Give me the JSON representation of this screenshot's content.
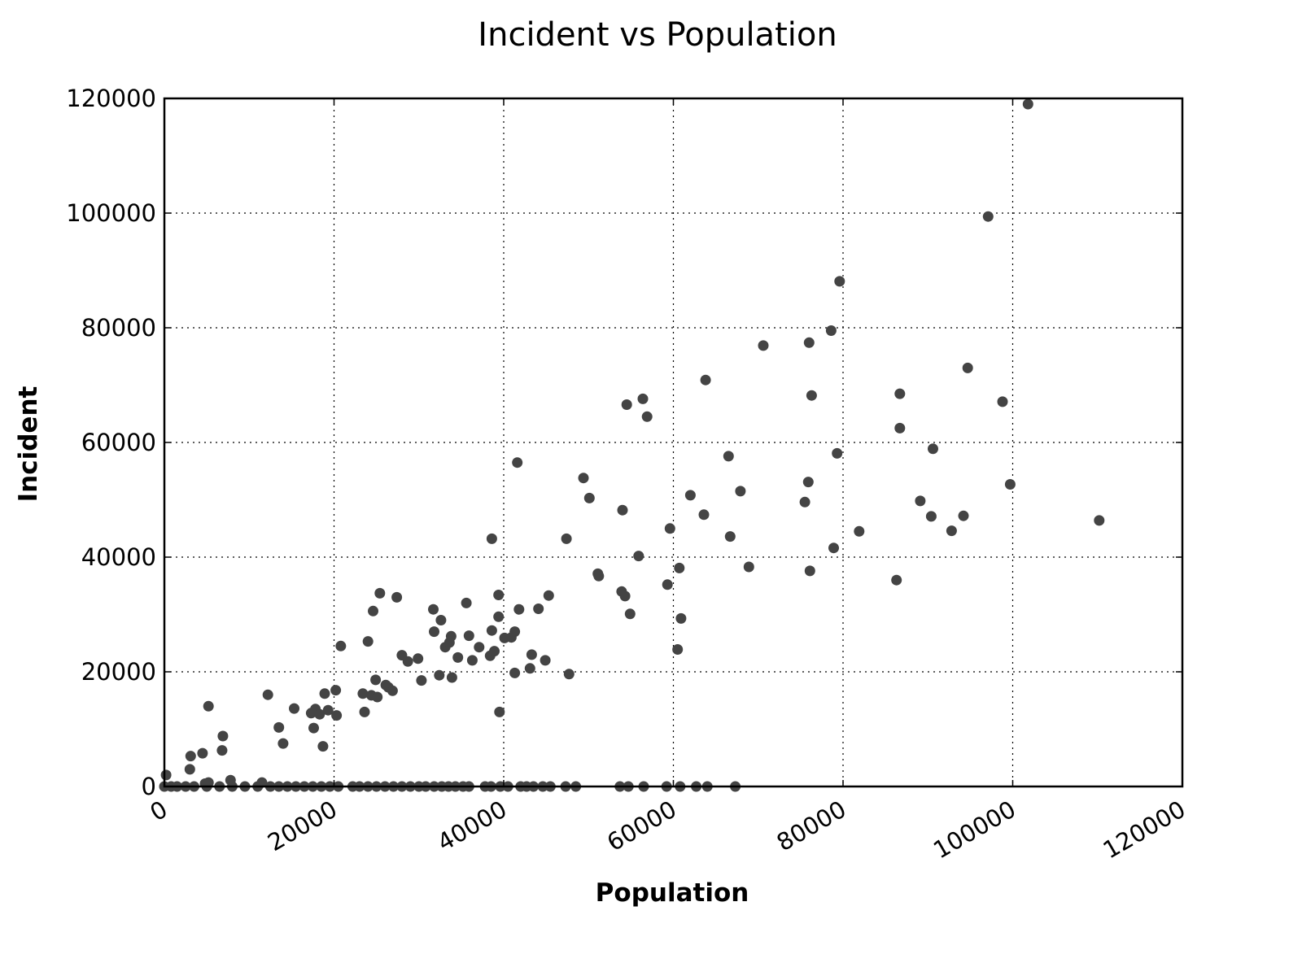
{
  "chart_data": {
    "type": "scatter",
    "title": "Incident vs Population",
    "xlabel": "Population",
    "ylabel": "Incident",
    "xlim": [
      0,
      120000
    ],
    "ylim": [
      0,
      120000
    ],
    "xticks": [
      "0",
      "20000",
      "40000",
      "60000",
      "80000",
      "100000",
      "120000"
    ],
    "yticks": [
      "0",
      "20000",
      "40000",
      "60000",
      "80000",
      "100000",
      "120000"
    ],
    "grid": true,
    "marker_color": "#444444",
    "points": [
      [
        200,
        2000
      ],
      [
        3000,
        3000
      ],
      [
        3100,
        5300
      ],
      [
        4500,
        5800
      ],
      [
        5200,
        14000
      ],
      [
        6800,
        6300
      ],
      [
        6900,
        8800
      ],
      [
        7800,
        1100
      ],
      [
        4800,
        500
      ],
      [
        5200,
        700
      ],
      [
        11500,
        700
      ],
      [
        12200,
        16000
      ],
      [
        13500,
        10300
      ],
      [
        14000,
        7500
      ],
      [
        15300,
        13600
      ],
      [
        17300,
        12800
      ],
      [
        17600,
        10200
      ],
      [
        17800,
        13500
      ],
      [
        18300,
        12600
      ],
      [
        18700,
        7000
      ],
      [
        18900,
        16200
      ],
      [
        19300,
        13300
      ],
      [
        20200,
        16800
      ],
      [
        20300,
        12400
      ],
      [
        20800,
        24500
      ],
      [
        23400,
        16200
      ],
      [
        23600,
        13000
      ],
      [
        24000,
        25300
      ],
      [
        24400,
        15900
      ],
      [
        24600,
        30600
      ],
      [
        24900,
        18600
      ],
      [
        25100,
        15600
      ],
      [
        25400,
        33700
      ],
      [
        26100,
        17700
      ],
      [
        26400,
        17300
      ],
      [
        26900,
        16700
      ],
      [
        27400,
        33000
      ],
      [
        28000,
        22900
      ],
      [
        28700,
        21800
      ],
      [
        29900,
        22300
      ],
      [
        30300,
        18500
      ],
      [
        31700,
        30900
      ],
      [
        31800,
        27000
      ],
      [
        32400,
        19400
      ],
      [
        32600,
        29000
      ],
      [
        33100,
        24300
      ],
      [
        33600,
        25100
      ],
      [
        33800,
        26200
      ],
      [
        33900,
        19000
      ],
      [
        34600,
        22500
      ],
      [
        35600,
        32000
      ],
      [
        35900,
        26300
      ],
      [
        36300,
        22000
      ],
      [
        37100,
        24300
      ],
      [
        38400,
        22800
      ],
      [
        38600,
        27200
      ],
      [
        38600,
        43200
      ],
      [
        38900,
        23600
      ],
      [
        39400,
        33400
      ],
      [
        39400,
        29600
      ],
      [
        39500,
        13000
      ],
      [
        40100,
        25900
      ],
      [
        40900,
        26000
      ],
      [
        41300,
        27000
      ],
      [
        41600,
        56500
      ],
      [
        41300,
        19800
      ],
      [
        41800,
        30900
      ],
      [
        43100,
        20600
      ],
      [
        43300,
        23000
      ],
      [
        44100,
        31000
      ],
      [
        44900,
        22000
      ],
      [
        45300,
        33300
      ],
      [
        47400,
        43200
      ],
      [
        47700,
        19600
      ],
      [
        49400,
        53800
      ],
      [
        50100,
        50300
      ],
      [
        51100,
        37100
      ],
      [
        51200,
        36700
      ],
      [
        53900,
        34000
      ],
      [
        54000,
        48200
      ],
      [
        54300,
        33200
      ],
      [
        54500,
        66600
      ],
      [
        54900,
        30100
      ],
      [
        55900,
        40200
      ],
      [
        56400,
        67600
      ],
      [
        56900,
        64500
      ],
      [
        59300,
        35200
      ],
      [
        59600,
        45000
      ],
      [
        60500,
        23900
      ],
      [
        60700,
        38100
      ],
      [
        60900,
        29300
      ],
      [
        62000,
        50800
      ],
      [
        63600,
        47400
      ],
      [
        63800,
        70900
      ],
      [
        66500,
        57600
      ],
      [
        66700,
        43600
      ],
      [
        67900,
        51500
      ],
      [
        68900,
        38300
      ],
      [
        70600,
        76900
      ],
      [
        75500,
        49600
      ],
      [
        75900,
        53100
      ],
      [
        76000,
        77400
      ],
      [
        76100,
        37600
      ],
      [
        76300,
        68200
      ],
      [
        78600,
        79500
      ],
      [
        78900,
        41600
      ],
      [
        79300,
        58100
      ],
      [
        79600,
        88100
      ],
      [
        81900,
        44500
      ],
      [
        86300,
        36000
      ],
      [
        86700,
        68500
      ],
      [
        86700,
        62500
      ],
      [
        89100,
        49800
      ],
      [
        90400,
        47100
      ],
      [
        90600,
        58900
      ],
      [
        92800,
        44600
      ],
      [
        94200,
        47200
      ],
      [
        94700,
        73000
      ],
      [
        97100,
        99400
      ],
      [
        98800,
        67100
      ],
      [
        99700,
        52700
      ],
      [
        101800,
        119000
      ],
      [
        110200,
        46400
      ],
      [
        0,
        0
      ],
      [
        800,
        0
      ],
      [
        1500,
        0
      ],
      [
        2500,
        0
      ],
      [
        3500,
        0
      ],
      [
        5000,
        0
      ],
      [
        6500,
        0
      ],
      [
        8000,
        0
      ],
      [
        9500,
        0
      ],
      [
        11000,
        0
      ],
      [
        12500,
        0
      ],
      [
        13500,
        0
      ],
      [
        14500,
        0
      ],
      [
        15500,
        0
      ],
      [
        16500,
        0
      ],
      [
        17500,
        0
      ],
      [
        18500,
        0
      ],
      [
        19500,
        0
      ],
      [
        20500,
        0
      ],
      [
        22200,
        0
      ],
      [
        23000,
        0
      ],
      [
        24000,
        0
      ],
      [
        25000,
        0
      ],
      [
        26000,
        0
      ],
      [
        27000,
        0
      ],
      [
        28000,
        0
      ],
      [
        29000,
        0
      ],
      [
        30000,
        0
      ],
      [
        30800,
        0
      ],
      [
        31800,
        0
      ],
      [
        32700,
        0
      ],
      [
        33500,
        0
      ],
      [
        34300,
        0
      ],
      [
        35200,
        0
      ],
      [
        35900,
        0
      ],
      [
        37800,
        0
      ],
      [
        38500,
        0
      ],
      [
        39600,
        0
      ],
      [
        40500,
        0
      ],
      [
        42000,
        0
      ],
      [
        42700,
        0
      ],
      [
        43500,
        0
      ],
      [
        44600,
        0
      ],
      [
        45500,
        0
      ],
      [
        47300,
        0
      ],
      [
        48500,
        0
      ],
      [
        53700,
        0
      ],
      [
        54700,
        0
      ],
      [
        56500,
        0
      ],
      [
        59200,
        0
      ],
      [
        60800,
        0
      ],
      [
        62700,
        0
      ],
      [
        64000,
        0
      ],
      [
        67300,
        0
      ]
    ]
  }
}
